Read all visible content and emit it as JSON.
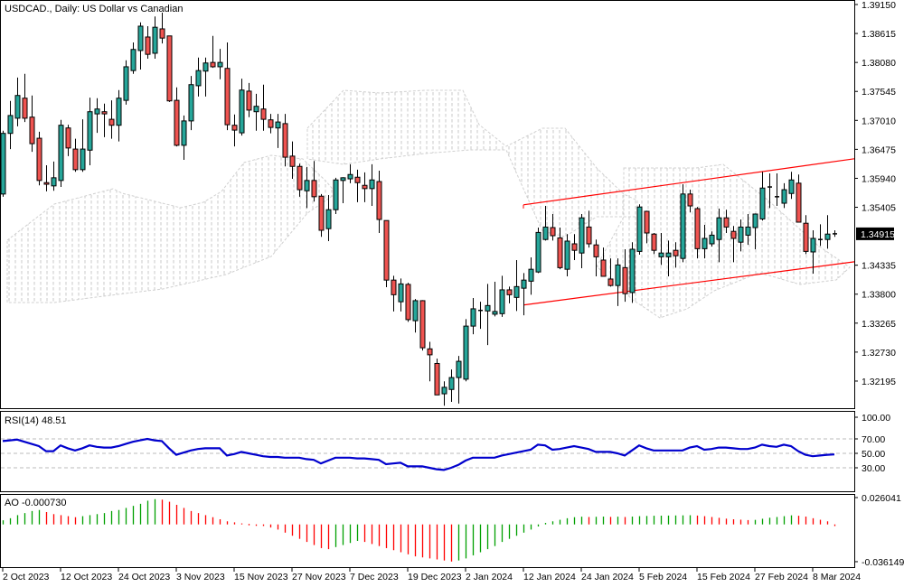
{
  "chart": {
    "title": "USDCAD., Daily:  US Dollar vs Canadian",
    "symbol": "USDCAD.",
    "timeframe": "Daily",
    "current_price_label": "1.34915",
    "colors": {
      "bull": "#26a69a",
      "bear": "#ef5350",
      "channel": "#ff0000",
      "rsi": "#0000cd",
      "ao_up": "#00a000",
      "ao_down": "#ff0000",
      "cloud": "#c8c8c8",
      "current_price_bg": "#000000"
    },
    "price_axis_labels": [
      "1.39150",
      "1.38615",
      "1.38080",
      "1.37545",
      "1.37010",
      "1.36475",
      "1.35940",
      "1.35405",
      "1.34335",
      "1.33800",
      "1.33265",
      "1.32730",
      "1.32195"
    ],
    "date_labels": [
      "2 Oct 2023",
      "12 Oct 2023",
      "24 Oct 2023",
      "3 Nov 2023",
      "15 Nov 2023",
      "27 Nov 2023",
      "7 Dec 2023",
      "19 Dec 2023",
      "2 Jan 2024",
      "12 Jan 2024",
      "24 Jan 2024",
      "5 Feb 2024",
      "15 Feb 2024",
      "27 Feb 2024",
      "8 Mar 2024"
    ]
  },
  "rsi": {
    "label": "RSI(14) 48.51",
    "axis_labels": [
      "100.00",
      "70.00",
      "50.00",
      "30.00"
    ],
    "levels": [
      70,
      50,
      30
    ]
  },
  "ao": {
    "label": "AO -0.000730",
    "axis_labels": [
      "0.026041",
      "-0.036149"
    ]
  },
  "chart_data": {
    "type": "candlestick",
    "ohlc": [
      [
        1.3565,
        1.3682,
        1.356,
        1.3677
      ],
      [
        1.3677,
        1.3737,
        1.3648,
        1.371
      ],
      [
        1.3705,
        1.378,
        1.369,
        1.3747
      ],
      [
        1.3742,
        1.3787,
        1.3698,
        1.3705
      ],
      [
        1.3707,
        1.3747,
        1.3643,
        1.3658
      ],
      [
        1.3668,
        1.368,
        1.3581,
        1.359
      ],
      [
        1.3586,
        1.3618,
        1.357,
        1.3583
      ],
      [
        1.358,
        1.3625,
        1.3571,
        1.3595
      ],
      [
        1.359,
        1.3702,
        1.3578,
        1.3692
      ],
      [
        1.3687,
        1.3693,
        1.3635,
        1.365
      ],
      [
        1.3648,
        1.3667,
        1.3606,
        1.361
      ],
      [
        1.361,
        1.3703,
        1.3606,
        1.3648
      ],
      [
        1.3646,
        1.3743,
        1.3618,
        1.3717
      ],
      [
        1.3713,
        1.3742,
        1.3678,
        1.3722
      ],
      [
        1.3717,
        1.3732,
        1.367,
        1.3713
      ],
      [
        1.3703,
        1.3738,
        1.3667,
        1.3692
      ],
      [
        1.3692,
        1.3757,
        1.3662,
        1.3742
      ],
      [
        1.3738,
        1.3812,
        1.373,
        1.38
      ],
      [
        1.3793,
        1.3845,
        1.3787,
        1.3832
      ],
      [
        1.383,
        1.3882,
        1.3795,
        1.3875
      ],
      [
        1.3855,
        1.3875,
        1.3815,
        1.3823
      ],
      [
        1.3825,
        1.3893,
        1.3815,
        1.3873
      ],
      [
        1.387,
        1.39,
        1.3843,
        1.3853
      ],
      [
        1.3857,
        1.3857,
        1.3735,
        1.3737
      ],
      [
        1.3738,
        1.3762,
        1.3653,
        1.3655
      ],
      [
        1.3655,
        1.371,
        1.3628,
        1.37
      ],
      [
        1.37,
        1.3783,
        1.3683,
        1.3767
      ],
      [
        1.3765,
        1.3817,
        1.3745,
        1.3793
      ],
      [
        1.3792,
        1.3817,
        1.3745,
        1.3807
      ],
      [
        1.3808,
        1.3857,
        1.3798,
        1.38
      ],
      [
        1.38,
        1.3833,
        1.3777,
        1.3808
      ],
      [
        1.3797,
        1.3845,
        1.3683,
        1.3693
      ],
      [
        1.3692,
        1.3712,
        1.3653,
        1.3683
      ],
      [
        1.3678,
        1.3778,
        1.3673,
        1.3757
      ],
      [
        1.3755,
        1.377,
        1.3707,
        1.372
      ],
      [
        1.3717,
        1.375,
        1.3682,
        1.3727
      ],
      [
        1.3722,
        1.3767,
        1.3682,
        1.3703
      ],
      [
        1.3702,
        1.3713,
        1.3677,
        1.3688
      ],
      [
        1.3687,
        1.3713,
        1.365,
        1.3698
      ],
      [
        1.3695,
        1.3713,
        1.3616,
        1.3633
      ],
      [
        1.3635,
        1.3662,
        1.3593,
        1.3616
      ],
      [
        1.3616,
        1.3621,
        1.356,
        1.3573
      ],
      [
        1.3571,
        1.3615,
        1.3539,
        1.359
      ],
      [
        1.359,
        1.3626,
        1.3551,
        1.356
      ],
      [
        1.3561,
        1.3565,
        1.3486,
        1.3498
      ],
      [
        1.3501,
        1.3563,
        1.3478,
        1.3536
      ],
      [
        1.3536,
        1.3595,
        1.3528,
        1.3591
      ],
      [
        1.359,
        1.3596,
        1.3548,
        1.3595
      ],
      [
        1.3593,
        1.362,
        1.3585,
        1.3601
      ],
      [
        1.3596,
        1.361,
        1.355,
        1.3586
      ],
      [
        1.3581,
        1.3605,
        1.355,
        1.3575
      ],
      [
        1.3575,
        1.362,
        1.3543,
        1.3591
      ],
      [
        1.3588,
        1.3608,
        1.3493,
        1.3518
      ],
      [
        1.3516,
        1.3516,
        1.3393,
        1.3406
      ],
      [
        1.3406,
        1.3414,
        1.3348,
        1.3379
      ],
      [
        1.3366,
        1.3409,
        1.3348,
        1.3399
      ],
      [
        1.3398,
        1.3401,
        1.3329,
        1.3333
      ],
      [
        1.3331,
        1.3371,
        1.3309,
        1.3368
      ],
      [
        1.3368,
        1.3369,
        1.3276,
        1.3281
      ],
      [
        1.3279,
        1.3292,
        1.3219,
        1.3268
      ],
      [
        1.3252,
        1.3261,
        1.3194,
        1.3194
      ],
      [
        1.3196,
        1.3219,
        1.3174,
        1.3208
      ],
      [
        1.3204,
        1.3241,
        1.3181,
        1.3226
      ],
      [
        1.3226,
        1.3266,
        1.3178,
        1.3256
      ],
      [
        1.3223,
        1.3334,
        1.3219,
        1.3321
      ],
      [
        1.3321,
        1.3373,
        1.3306,
        1.3353
      ],
      [
        1.3349,
        1.3366,
        1.3316,
        1.335
      ],
      [
        1.3349,
        1.3399,
        1.3286,
        1.3359
      ],
      [
        1.3343,
        1.3403,
        1.3339,
        1.3348
      ],
      [
        1.3344,
        1.3414,
        1.3338,
        1.3388
      ],
      [
        1.3388,
        1.3394,
        1.3363,
        1.3379
      ],
      [
        1.3374,
        1.3443,
        1.3349,
        1.3394
      ],
      [
        1.3391,
        1.3419,
        1.3341,
        1.3406
      ],
      [
        1.3404,
        1.3448,
        1.3379,
        1.3426
      ],
      [
        1.3421,
        1.3503,
        1.3419,
        1.3494
      ],
      [
        1.3481,
        1.3543,
        1.3479,
        1.3504
      ],
      [
        1.3503,
        1.3528,
        1.3479,
        1.3488
      ],
      [
        1.3484,
        1.3503,
        1.3426,
        1.3429
      ],
      [
        1.3426,
        1.3491,
        1.3413,
        1.3478
      ],
      [
        1.3473,
        1.3491,
        1.3443,
        1.3461
      ],
      [
        1.3456,
        1.3528,
        1.3428,
        1.3521
      ],
      [
        1.3504,
        1.3534,
        1.3466,
        1.3473
      ],
      [
        1.3471,
        1.3481,
        1.3413,
        1.3449
      ],
      [
        1.3443,
        1.3466,
        1.3413,
        1.3413
      ],
      [
        1.3408,
        1.3446,
        1.3394,
        1.3396
      ],
      [
        1.3396,
        1.3446,
        1.3358,
        1.3434
      ],
      [
        1.3429,
        1.3463,
        1.3366,
        1.3381
      ],
      [
        1.3383,
        1.3476,
        1.3364,
        1.3463
      ],
      [
        1.3459,
        1.3546,
        1.3453,
        1.3541
      ],
      [
        1.3533,
        1.3534,
        1.3474,
        1.3493
      ],
      [
        1.3491,
        1.3493,
        1.3454,
        1.3461
      ],
      [
        1.3449,
        1.3493,
        1.3434,
        1.3456
      ],
      [
        1.3449,
        1.3479,
        1.3413,
        1.3456
      ],
      [
        1.3461,
        1.3476,
        1.3429,
        1.3451
      ],
      [
        1.3446,
        1.3583,
        1.3439,
        1.3565
      ],
      [
        1.3565,
        1.3573,
        1.3531,
        1.3543
      ],
      [
        1.3538,
        1.3541,
        1.3446,
        1.3464
      ],
      [
        1.3464,
        1.3508,
        1.3446,
        1.3483
      ],
      [
        1.3473,
        1.3496,
        1.3468,
        1.3489
      ],
      [
        1.3481,
        1.3538,
        1.3439,
        1.3521
      ],
      [
        1.3521,
        1.3536,
        1.3493,
        1.3504
      ],
      [
        1.3496,
        1.3506,
        1.3439,
        1.3483
      ],
      [
        1.3476,
        1.3518,
        1.3459,
        1.3504
      ],
      [
        1.3489,
        1.3528,
        1.3471,
        1.3504
      ],
      [
        1.3503,
        1.3529,
        1.3463,
        1.3528
      ],
      [
        1.3519,
        1.3606,
        1.3516,
        1.3576
      ],
      [
        1.3576,
        1.3603,
        1.3539,
        1.3578
      ],
      [
        1.356,
        1.3603,
        1.3543,
        1.356
      ],
      [
        1.3548,
        1.3585,
        1.3539,
        1.3573
      ],
      [
        1.3566,
        1.3606,
        1.3556,
        1.3591
      ],
      [
        1.3585,
        1.3601,
        1.3513,
        1.3513
      ],
      [
        1.3511,
        1.3526,
        1.3454,
        1.3459
      ],
      [
        1.3458,
        1.3498,
        1.3418,
        1.3483
      ],
      [
        1.3481,
        1.3509,
        1.3469,
        1.3481
      ],
      [
        1.3481,
        1.3526,
        1.3464,
        1.3491
      ],
      [
        1.3491,
        1.3498,
        1.3486,
        1.34915
      ]
    ],
    "rsi": [
      67,
      68,
      69,
      66,
      63,
      60,
      53,
      53,
      61,
      57,
      54,
      57,
      61,
      59,
      58,
      58,
      60,
      63,
      66,
      68,
      70,
      68,
      67,
      57,
      48,
      51,
      54,
      56,
      57,
      57,
      57,
      47,
      49,
      52,
      50,
      48,
      46,
      45,
      45,
      44,
      44,
      44,
      42,
      41,
      36,
      40,
      44,
      44,
      44,
      43,
      43,
      42,
      41,
      35,
      36,
      37,
      32,
      32,
      32,
      30,
      28,
      27,
      30,
      34,
      40,
      44,
      44,
      44,
      44,
      47,
      49,
      51,
      53,
      55,
      62,
      61,
      55,
      56,
      58,
      60,
      58,
      56,
      52,
      52,
      52,
      50,
      47,
      54,
      61,
      57,
      54,
      54,
      54,
      54,
      54,
      58,
      60,
      55,
      56,
      58,
      58,
      57,
      56,
      56,
      58,
      62,
      60,
      59,
      62,
      60,
      53,
      48,
      46,
      47,
      48,
      48.51
    ],
    "ao": [
      0.004,
      0.006,
      0.009,
      0.011,
      0.013,
      0.014,
      0.012,
      0.01,
      0.009,
      0.008,
      0.007,
      0.008,
      0.009,
      0.01,
      0.011,
      0.013,
      0.014,
      0.016,
      0.018,
      0.02,
      0.023,
      0.0245,
      0.024,
      0.022,
      0.019,
      0.016,
      0.013,
      0.011,
      0.009,
      0.007,
      0.005,
      0.003,
      0.002,
      0.001,
      0.0005,
      -0.0005,
      -0.0015,
      -0.003,
      -0.005,
      -0.008,
      -0.011,
      -0.014,
      -0.017,
      -0.02,
      -0.023,
      -0.024,
      -0.022,
      -0.02,
      -0.018,
      -0.016,
      -0.017,
      -0.019,
      -0.021,
      -0.023,
      -0.025,
      -0.027,
      -0.029,
      -0.031,
      -0.032,
      -0.033,
      -0.034,
      -0.035,
      -0.036,
      -0.035,
      -0.033,
      -0.03,
      -0.027,
      -0.024,
      -0.021,
      -0.017,
      -0.014,
      -0.011,
      -0.008,
      -0.005,
      -0.002,
      0.0015,
      0.003,
      0.0045,
      0.006,
      0.007,
      0.0075,
      0.0072,
      0.0074,
      0.0076,
      0.0073,
      0.0075,
      0.0072,
      0.0076,
      0.008,
      0.0082,
      0.0084,
      0.0085,
      0.0086,
      0.0087,
      0.0088,
      0.0089,
      0.0086,
      0.008,
      0.0072,
      0.0064,
      0.0056,
      0.005,
      0.0046,
      0.0042,
      0.0044,
      0.0055,
      0.0065,
      0.0072,
      0.008,
      0.0088,
      0.0084,
      0.0076,
      0.006,
      0.0045,
      0.003,
      -0.00073
    ],
    "price_range": [
      1.3198,
      1.3915
    ],
    "rsi_range": [
      0,
      100
    ],
    "ao_range": [
      -0.036149,
      0.026041
    ],
    "channel": {
      "upper": [
        [
          72,
          1.3545
        ],
        [
          115,
          1.3625
        ]
      ],
      "lower": [
        [
          72,
          1.336
        ],
        [
          115,
          1.3435
        ]
      ]
    }
  }
}
